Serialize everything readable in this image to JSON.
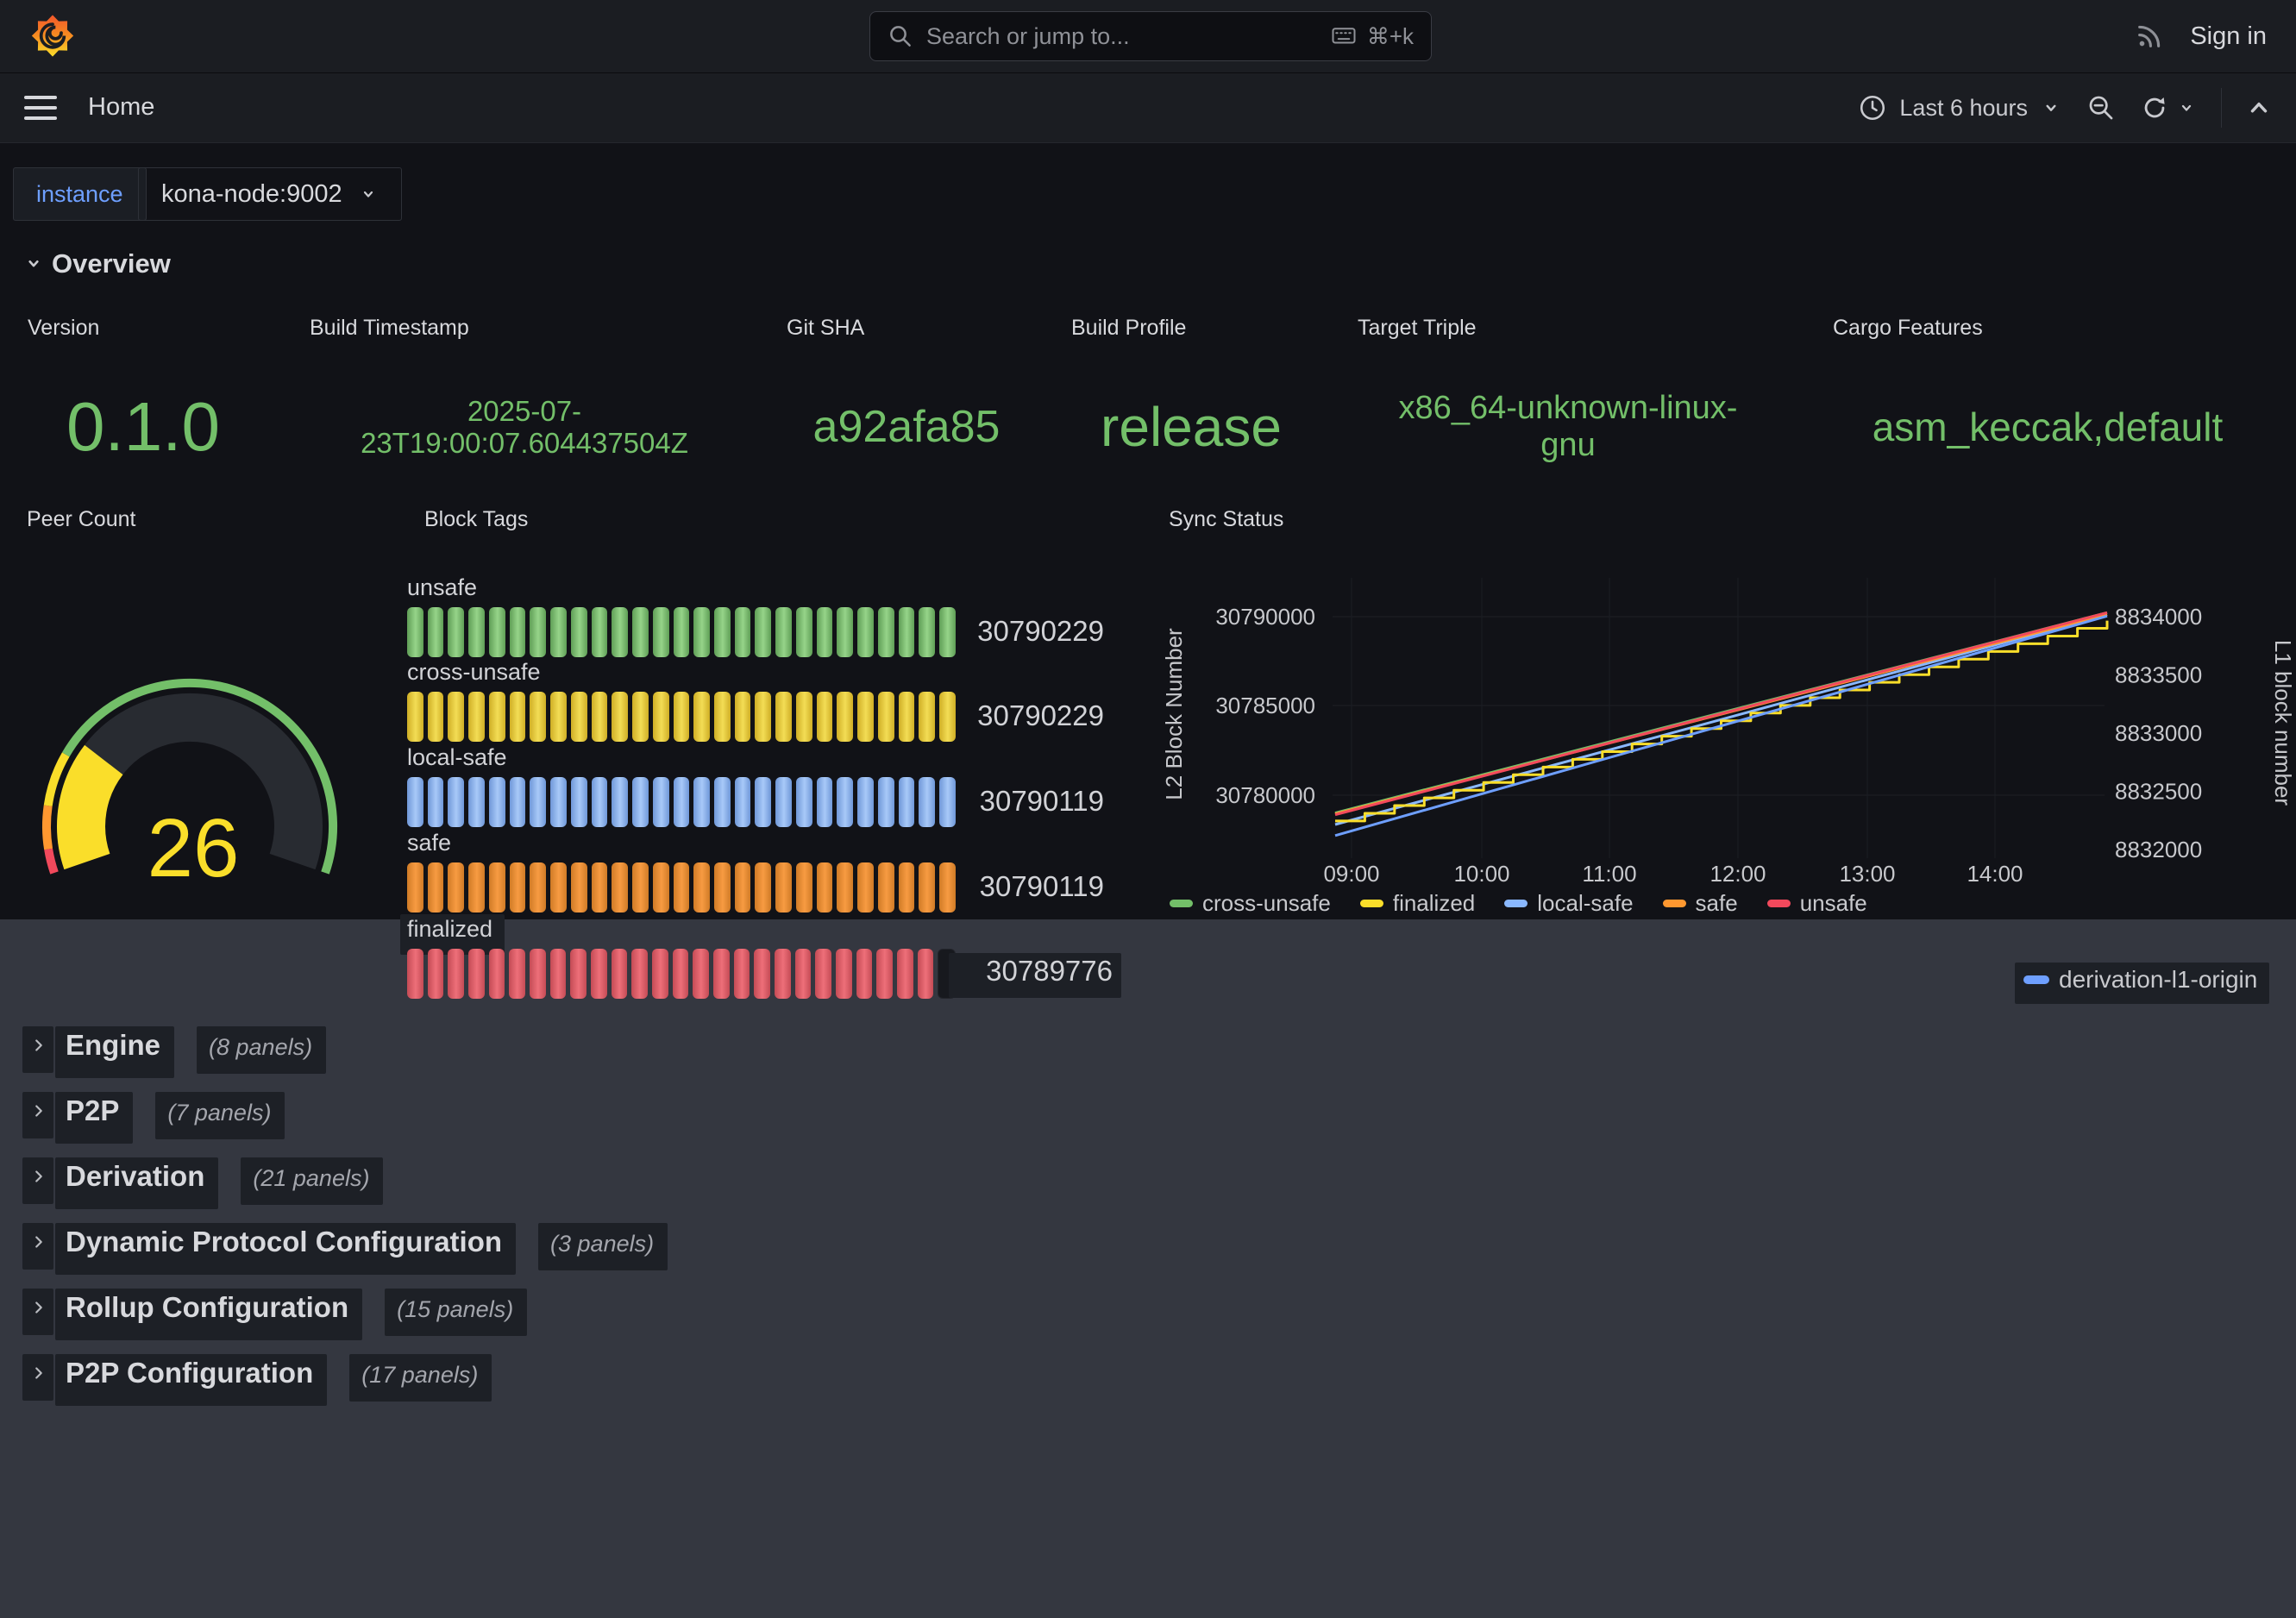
{
  "topbar": {
    "search_placeholder": "Search or jump to...",
    "search_shortcut": "⌘+k",
    "sign_in_label": "Sign in"
  },
  "navbar": {
    "breadcrumb": "Home",
    "time_range_label": "Last 6 hours"
  },
  "variables": {
    "label": "instance",
    "value": "kona-node:9002"
  },
  "overview_section": {
    "title": "Overview"
  },
  "stat_value_color": "#73BF69",
  "stats": [
    {
      "title": "Version",
      "lines": [
        "0.1.0"
      ]
    },
    {
      "title": "Build Timestamp",
      "lines": [
        "2025-07-",
        "23T19:00:07.604437504Z"
      ]
    },
    {
      "title": "Git SHA",
      "lines": [
        "a92afa85"
      ]
    },
    {
      "title": "Build Profile",
      "lines": [
        "release"
      ]
    },
    {
      "title": "Target Triple",
      "lines": [
        "x86_64-unknown-linux-",
        "gnu"
      ]
    },
    {
      "title": "Cargo Features",
      "lines": [
        "asm_keccak,default"
      ]
    }
  ],
  "peer_count": {
    "title": "Peer Count",
    "value": "26",
    "max": 100,
    "value_color": "#FADE2A",
    "band_color": "#282b31",
    "thresholds": [
      {
        "color": "#F2495C",
        "to": 0.045
      },
      {
        "color": "#FF9830",
        "to": 0.125
      },
      {
        "color": "#FADE2A",
        "to": 0.225
      },
      {
        "color": "#73BF69",
        "to": 1
      }
    ]
  },
  "block_tags": {
    "title": "Block Tags",
    "rows": [
      {
        "label": "unsafe",
        "value": "30790229",
        "color": "#96d489",
        "shade": "#5f9e56",
        "cells": 27,
        "lit": 27,
        "chip": false
      },
      {
        "label": "cross-unsafe",
        "value": "30790229",
        "color": "#f3dd55",
        "shade": "#cfae25",
        "cells": 27,
        "lit": 27,
        "chip": false
      },
      {
        "label": "local-safe",
        "value": "30790119",
        "color": "#a8c9f8",
        "shade": "#6f97d8",
        "cells": 27,
        "lit": 27,
        "chip": false
      },
      {
        "label": "safe",
        "value": "30790119",
        "color": "#f79b42",
        "shade": "#d07b26",
        "cells": 27,
        "lit": 27,
        "chip": false
      },
      {
        "label": "finalized",
        "value": "30789776",
        "color": "#ee6f79",
        "shade": "#c44b55",
        "cells": 27,
        "lit": 26,
        "chip": true
      }
    ]
  },
  "sync_status": {
    "title": "Sync Status",
    "chart_data": {
      "type": "line",
      "x_ticks": [
        "09:00",
        "10:00",
        "11:00",
        "12:00",
        "13:00",
        "14:00"
      ],
      "left_axis": {
        "label": "L2 Block Number",
        "ticks": [
          "30790000",
          "30785000",
          "30780000"
        ]
      },
      "right_axis": {
        "label": "L1 block number",
        "ticks": [
          "8834000",
          "8833500",
          "8833000",
          "8832500",
          "8832000"
        ]
      },
      "series": [
        {
          "name": "cross-unsafe",
          "color": "#73BF69",
          "axis": "left",
          "start": 30778950,
          "end": 30790229,
          "style": "line"
        },
        {
          "name": "local-safe",
          "color": "#8AB8FF",
          "axis": "left",
          "start": 30778300,
          "end": 30790119,
          "style": "line"
        },
        {
          "name": "safe",
          "color": "#FF9830",
          "axis": "left",
          "start": 30778900,
          "end": 30790119,
          "style": "line"
        },
        {
          "name": "finalized",
          "color": "#FADE2A",
          "axis": "left",
          "start": 30778500,
          "end": 30789776,
          "style": "step"
        },
        {
          "name": "unsafe",
          "color": "#F2495C",
          "axis": "left",
          "start": 30778850,
          "end": 30790229,
          "style": "line"
        },
        {
          "name": "derivation-l1-origin",
          "color": "#6E9FFF",
          "axis": "right",
          "start": 8832120,
          "end": 8834005,
          "style": "line"
        }
      ],
      "legend_row1": [
        "cross-unsafe",
        "finalized",
        "local-safe",
        "safe",
        "unsafe"
      ],
      "legend_row2": [
        "derivation-l1-origin"
      ]
    }
  },
  "collapsed_sections": [
    {
      "title": "Engine",
      "panels": "(8 panels)"
    },
    {
      "title": "P2P",
      "panels": "(7 panels)"
    },
    {
      "title": "Derivation",
      "panels": "(21 panels)"
    },
    {
      "title": "Dynamic Protocol Configuration",
      "panels": "(3 panels)"
    },
    {
      "title": "Rollup Configuration",
      "panels": "(15 panels)"
    },
    {
      "title": "P2P Configuration",
      "panels": "(17 panels)"
    }
  ],
  "icons": {
    "grafana-logo": "orange flame swirl",
    "search-icon": "magnifier",
    "keyboard-icon": "keyboard",
    "rss-icon": "rss waves",
    "hamburger-menu-icon": "three bars",
    "clock-icon": "clock",
    "chevron-down-icon": "v",
    "zoom-out-icon": "magnifier minus",
    "refresh-icon": "circular arrow",
    "collapse-up-icon": "caret up",
    "chevron-right-icon": ">"
  }
}
